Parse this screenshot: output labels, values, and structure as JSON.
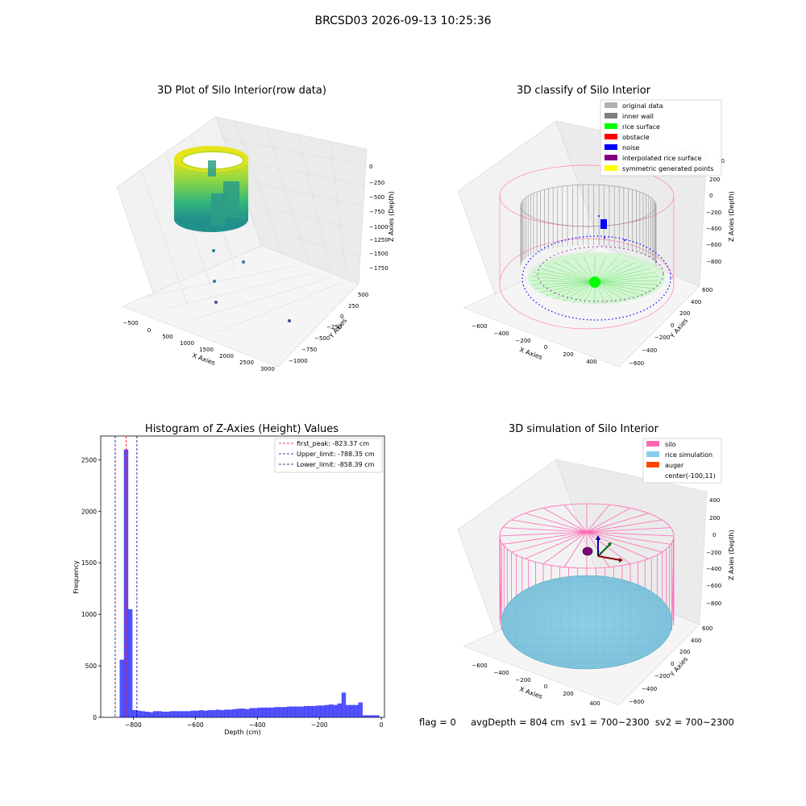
{
  "suptitle": "BRCSD03 2026-09-13 10:25:36",
  "footer": "flag = 0     avgDepth = 804 cm  sv1 = 700~2300  sv2 = 700~2300",
  "colors": {
    "hist_bar": "#0000ff",
    "first_peak": "#ff0000",
    "limits": "#00008b",
    "silo": "#ff69b4",
    "rice_sim": "#87ceeb",
    "auger": "#ff4500",
    "inner_wall": "#808080",
    "rice_surface": "#00ff00",
    "noise": "#0000ff"
  },
  "panels": {
    "raw": {
      "title": "3D Plot of Silo Interior(row data)",
      "xlabel": "X Axies",
      "ylabel": "Y Axies",
      "zlabel": "Z Axies (Depth)",
      "xticks": [
        "−500",
        "0",
        "500",
        "1000",
        "1500",
        "2000",
        "2500",
        "3000"
      ],
      "yticks": [
        "500",
        "250",
        "0",
        "−250",
        "−500",
        "−750",
        "−1000"
      ],
      "zticks": [
        "0",
        "−250",
        "−500",
        "−750",
        "−1000",
        "−1250",
        "−1500",
        "−1750"
      ]
    },
    "classify": {
      "title": "3D classify of Silo Interior",
      "xlabel": "X Axies",
      "ylabel": "Y Axies",
      "zlabel": "Z Axies (Depth)",
      "xticks": [
        "−600",
        "−400",
        "−200",
        "0",
        "200",
        "400"
      ],
      "yticks": [
        "600",
        "400",
        "200",
        "0",
        "−200",
        "−400",
        "−600"
      ],
      "zticks": [
        "200",
        "0",
        "−200",
        "−400",
        "−600",
        "−800"
      ],
      "ztop_partial": "00",
      "legend": [
        {
          "label": "original data",
          "color": "#b0b0b0"
        },
        {
          "label": "inner wall",
          "color": "#808080"
        },
        {
          "label": "rice surface",
          "color": "#00ff00"
        },
        {
          "label": "obstacle",
          "color": "#ff0000"
        },
        {
          "label": "noise",
          "color": "#0000ff"
        },
        {
          "label": "interpolated rice surface",
          "color": "#800080"
        },
        {
          "label": "symmetric generated points",
          "color": "#ffff00"
        }
      ]
    },
    "simulation": {
      "title": "3D simulation of Silo Interior",
      "xlabel": "X Axies",
      "ylabel": "Y Axies",
      "zlabel": "Z Axies (Depth)",
      "xticks": [
        "−600",
        "−400",
        "−200",
        "0",
        "200",
        "400"
      ],
      "yticks": [
        "600",
        "400",
        "200",
        "0",
        "−200",
        "−400",
        "−600"
      ],
      "zticks": [
        "400",
        "200",
        "0",
        "−200",
        "−400",
        "−600",
        "−800"
      ],
      "legend": [
        {
          "label": "silo",
          "color": "#ff69b4"
        },
        {
          "label": "rice simulation",
          "color": "#87ceeb"
        },
        {
          "label": "auger",
          "color": "#ff4500"
        },
        {
          "label": "center(-100,11)",
          "color": ""
        }
      ]
    }
  },
  "chart_data": {
    "type": "bar",
    "title": "Histogram of Z-Axies (Height) Values",
    "xlabel": "Depth (cm)",
    "ylabel": "Frequency",
    "xlim": [
      -905,
      10
    ],
    "ylim": [
      0,
      2730
    ],
    "xticks": [
      -800,
      -600,
      -400,
      -200,
      0
    ],
    "yticks": [
      0,
      500,
      1000,
      1500,
      2000,
      2500
    ],
    "bin_width": 13.5,
    "bins": [
      [
        -844,
        560
      ],
      [
        -830.5,
        2600
      ],
      [
        -817,
        1050
      ],
      [
        -803.5,
        70
      ],
      [
        -790,
        65
      ],
      [
        -776.5,
        60
      ],
      [
        -763,
        55
      ],
      [
        -749.5,
        50
      ],
      [
        -736,
        60
      ],
      [
        -722.5,
        60
      ],
      [
        -709,
        55
      ],
      [
        -695.5,
        55
      ],
      [
        -682,
        60
      ],
      [
        -668.5,
        60
      ],
      [
        -655,
        60
      ],
      [
        -641.5,
        60
      ],
      [
        -628,
        60
      ],
      [
        -614.5,
        65
      ],
      [
        -601,
        65
      ],
      [
        -587.5,
        70
      ],
      [
        -574,
        65
      ],
      [
        -560.5,
        70
      ],
      [
        -547,
        70
      ],
      [
        -533.5,
        75
      ],
      [
        -520,
        70
      ],
      [
        -506.5,
        75
      ],
      [
        -493,
        75
      ],
      [
        -479.5,
        80
      ],
      [
        -466,
        85
      ],
      [
        -452.5,
        85
      ],
      [
        -439,
        80
      ],
      [
        -425.5,
        90
      ],
      [
        -412,
        90
      ],
      [
        -398.5,
        95
      ],
      [
        -385,
        95
      ],
      [
        -371.5,
        95
      ],
      [
        -358,
        95
      ],
      [
        -344.5,
        100
      ],
      [
        -331,
        100
      ],
      [
        -317.5,
        100
      ],
      [
        -304,
        105
      ],
      [
        -290.5,
        105
      ],
      [
        -277,
        105
      ],
      [
        -263.5,
        105
      ],
      [
        -250,
        110
      ],
      [
        -236.5,
        110
      ],
      [
        -223,
        110
      ],
      [
        -209.5,
        115
      ],
      [
        -196,
        115
      ],
      [
        -182.5,
        120
      ],
      [
        -169,
        125
      ],
      [
        -155.5,
        120
      ],
      [
        -142,
        135
      ],
      [
        -128.5,
        240
      ],
      [
        -115,
        120
      ],
      [
        -101.5,
        120
      ],
      [
        -88,
        120
      ],
      [
        -74.5,
        145
      ],
      [
        -61,
        20
      ],
      [
        -47.5,
        20
      ],
      [
        -34,
        20
      ],
      [
        -20.5,
        20
      ]
    ],
    "vlines": [
      {
        "name": "first_peak: -823.37 cm",
        "x": -823.37,
        "color": "#ff0000"
      },
      {
        "name": "Upper_limit: -788.35 cm",
        "x": -788.35,
        "color": "#00008b"
      },
      {
        "name": "Lower_limit: -858.39 cm",
        "x": -858.39,
        "color": "#00008b"
      }
    ],
    "legend_position": "upper right"
  }
}
